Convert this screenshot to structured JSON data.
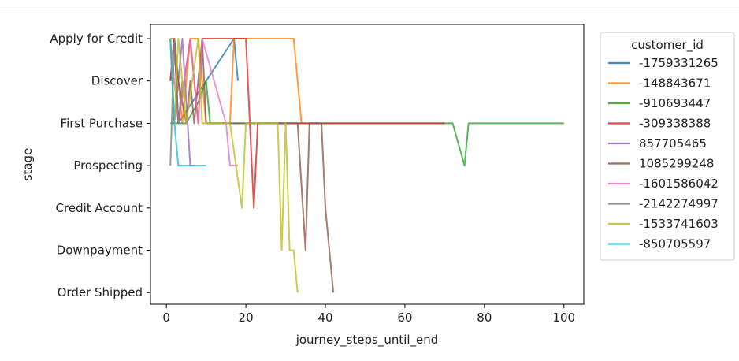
{
  "chart_data": {
    "type": "line",
    "xlabel": "journey_steps_until_end",
    "ylabel": "stage",
    "xlim": [
      -4,
      105
    ],
    "xticks": [
      0,
      20,
      40,
      60,
      80,
      100
    ],
    "categories_y": [
      "Apply for Credit",
      "Discover",
      "First Purchase",
      "Prospecting",
      "Credit Account",
      "Downpayment",
      "Order Shipped"
    ],
    "grid": false,
    "legend": {
      "title": "customer_id",
      "placement": "outside-right"
    },
    "series": [
      {
        "name": "-1759331265",
        "color": "#1f77b4",
        "points": [
          [
            1,
            1
          ],
          [
            2,
            0
          ],
          [
            3,
            2
          ],
          [
            17,
            0
          ],
          [
            18,
            1
          ]
        ]
      },
      {
        "name": "-148843671",
        "color": "#ff7f0e",
        "points": [
          [
            1,
            0
          ],
          [
            2,
            0
          ],
          [
            4,
            2
          ],
          [
            6,
            0
          ],
          [
            8,
            0
          ],
          [
            10,
            2
          ],
          [
            16,
            2
          ],
          [
            17,
            0
          ],
          [
            32,
            0
          ],
          [
            34,
            2
          ]
        ]
      },
      {
        "name": "-910693447",
        "color": "#2ca02c",
        "points": [
          [
            1,
            2
          ],
          [
            5,
            2
          ],
          [
            8,
            1.5
          ],
          [
            10,
            1
          ],
          [
            11,
            2
          ],
          [
            70,
            2
          ],
          [
            72,
            2
          ],
          [
            75,
            3
          ],
          [
            76,
            2
          ],
          [
            100,
            2
          ]
        ]
      },
      {
        "name": "-309338388",
        "color": "#d62728",
        "points": [
          [
            1,
            1
          ],
          [
            2,
            0
          ],
          [
            3,
            2
          ],
          [
            6,
            0
          ],
          [
            8,
            2
          ],
          [
            9,
            0
          ],
          [
            20,
            0
          ],
          [
            21,
            2
          ],
          [
            22,
            4
          ],
          [
            23,
            2
          ],
          [
            70,
            2
          ]
        ]
      },
      {
        "name": "857705465",
        "color": "#9467bd",
        "points": [
          [
            1,
            0
          ],
          [
            2,
            2
          ],
          [
            4,
            0
          ],
          [
            6,
            3
          ],
          [
            7,
            3
          ]
        ]
      },
      {
        "name": "1085299248",
        "color": "#8c564b",
        "points": [
          [
            2,
            0
          ],
          [
            3,
            1
          ],
          [
            5,
            2
          ],
          [
            6,
            1
          ],
          [
            7,
            2
          ],
          [
            9,
            0
          ],
          [
            10,
            2
          ],
          [
            33,
            2
          ],
          [
            35,
            5
          ],
          [
            36,
            2
          ],
          [
            39,
            2
          ],
          [
            40,
            4
          ],
          [
            42,
            6
          ]
        ]
      },
      {
        "name": "-1601586042",
        "color": "#e377c2",
        "points": [
          [
            1,
            0
          ],
          [
            3,
            2
          ],
          [
            6,
            0
          ],
          [
            8,
            2
          ],
          [
            9,
            0
          ],
          [
            15,
            2
          ],
          [
            16,
            3
          ],
          [
            18,
            3
          ]
        ]
      },
      {
        "name": "-2142274997",
        "color": "#7f7f7f",
        "points": [
          [
            1,
            3
          ],
          [
            2,
            0
          ],
          [
            3,
            2
          ],
          [
            4,
            1
          ]
        ]
      },
      {
        "name": "-1533741603",
        "color": "#bcbd22",
        "points": [
          [
            1,
            0
          ],
          [
            2,
            2
          ],
          [
            3,
            0
          ],
          [
            5,
            2
          ],
          [
            8,
            0
          ],
          [
            9,
            2
          ],
          [
            16,
            2
          ],
          [
            19,
            4
          ],
          [
            20,
            2
          ],
          [
            28,
            2
          ],
          [
            29,
            5
          ],
          [
            30,
            2
          ],
          [
            31,
            5
          ],
          [
            32,
            5
          ],
          [
            33,
            6
          ]
        ]
      },
      {
        "name": "-850705597",
        "color": "#17becf",
        "points": [
          [
            1,
            0
          ],
          [
            2,
            2
          ],
          [
            3,
            3
          ],
          [
            10,
            3
          ]
        ]
      }
    ]
  }
}
